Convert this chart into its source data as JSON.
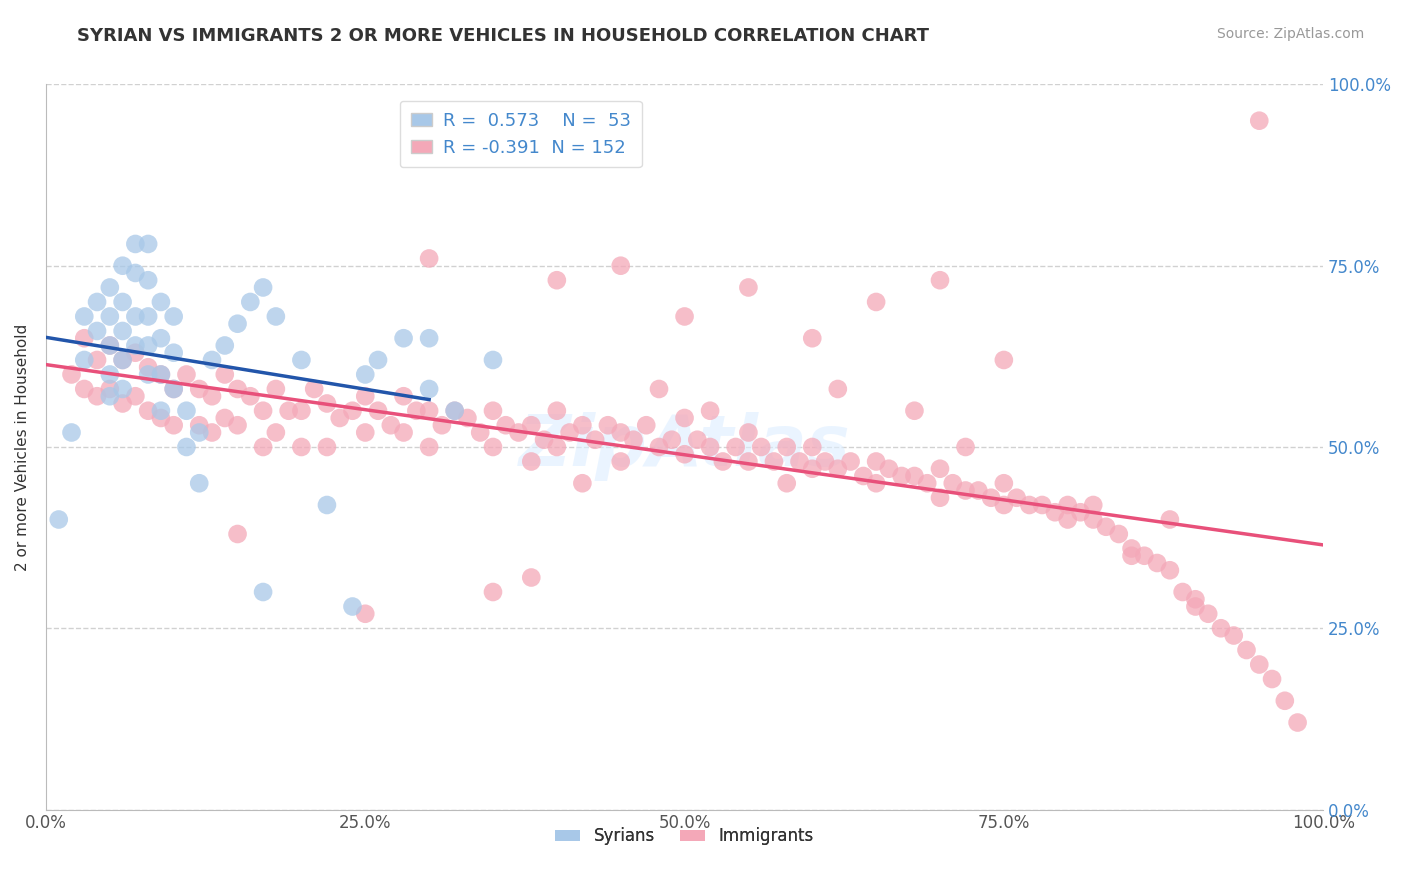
{
  "title": "SYRIAN VS IMMIGRANTS 2 OR MORE VEHICLES IN HOUSEHOLD CORRELATION CHART",
  "source": "Source: ZipAtlas.com",
  "ylabel": "2 or more Vehicles in Household",
  "background_color": "#ffffff",
  "syrian_color": "#a8c8e8",
  "immigrant_color": "#f4a8b8",
  "syrian_line_color": "#2255aa",
  "immigrant_line_color": "#e8507a",
  "syrian_R": 0.573,
  "syrian_N": 53,
  "immigrant_R": -0.391,
  "immigrant_N": 152,
  "watermark": "ZipAtlas",
  "ytick_labels": [
    "0.0%",
    "25.0%",
    "50.0%",
    "75.0%",
    "100.0%"
  ],
  "ytick_values": [
    0,
    25,
    50,
    75,
    100
  ],
  "xtick_labels": [
    "0.0%",
    "25.0%",
    "50.0%",
    "75.0%",
    "100.0%"
  ],
  "xtick_values": [
    0,
    25,
    50,
    75,
    100
  ],
  "syrians_x": [
    1,
    2,
    3,
    3,
    4,
    4,
    5,
    5,
    5,
    5,
    5,
    6,
    6,
    6,
    6,
    6,
    7,
    7,
    7,
    7,
    8,
    8,
    8,
    8,
    8,
    9,
    9,
    9,
    9,
    10,
    10,
    10,
    11,
    11,
    12,
    12,
    13,
    14,
    15,
    16,
    17,
    17,
    18,
    20,
    22,
    24,
    26,
    30,
    30,
    32,
    35,
    25,
    28
  ],
  "syrians_y": [
    40,
    52,
    68,
    62,
    70,
    66,
    72,
    68,
    64,
    60,
    57,
    75,
    70,
    66,
    62,
    58,
    78,
    74,
    68,
    64,
    78,
    73,
    68,
    64,
    60,
    70,
    65,
    60,
    55,
    68,
    63,
    58,
    55,
    50,
    45,
    52,
    62,
    64,
    67,
    70,
    72,
    30,
    68,
    62,
    42,
    28,
    62,
    58,
    65,
    55,
    62,
    60,
    65
  ],
  "immigrants_x": [
    2,
    3,
    3,
    4,
    4,
    5,
    5,
    6,
    6,
    7,
    7,
    8,
    8,
    9,
    9,
    10,
    10,
    11,
    12,
    12,
    13,
    13,
    14,
    14,
    15,
    15,
    16,
    17,
    17,
    18,
    18,
    19,
    20,
    20,
    21,
    22,
    22,
    23,
    24,
    25,
    25,
    26,
    27,
    28,
    28,
    29,
    30,
    30,
    31,
    32,
    33,
    34,
    35,
    35,
    36,
    37,
    38,
    38,
    39,
    40,
    40,
    41,
    42,
    43,
    44,
    45,
    45,
    46,
    47,
    48,
    49,
    50,
    50,
    51,
    52,
    53,
    54,
    55,
    55,
    56,
    57,
    58,
    59,
    60,
    60,
    61,
    62,
    63,
    64,
    65,
    65,
    66,
    67,
    68,
    69,
    70,
    70,
    71,
    72,
    73,
    74,
    75,
    75,
    76,
    77,
    78,
    79,
    80,
    80,
    81,
    82,
    83,
    84,
    85,
    85,
    86,
    87,
    88,
    89,
    90,
    90,
    91,
    92,
    93,
    94,
    95,
    96,
    97,
    98,
    95,
    40,
    55,
    65,
    45,
    30,
    70,
    50,
    60,
    75,
    35,
    25,
    48,
    52,
    42,
    38,
    62,
    68,
    72,
    58,
    82,
    88,
    15
  ],
  "immigrants_y": [
    60,
    65,
    58,
    62,
    57,
    64,
    58,
    62,
    56,
    63,
    57,
    61,
    55,
    60,
    54,
    58,
    53,
    60,
    58,
    53,
    57,
    52,
    60,
    54,
    58,
    53,
    57,
    55,
    50,
    58,
    52,
    55,
    55,
    50,
    58,
    56,
    50,
    54,
    55,
    57,
    52,
    55,
    53,
    57,
    52,
    55,
    55,
    50,
    53,
    55,
    54,
    52,
    55,
    50,
    53,
    52,
    53,
    48,
    51,
    55,
    50,
    52,
    53,
    51,
    53,
    52,
    48,
    51,
    53,
    50,
    51,
    54,
    49,
    51,
    50,
    48,
    50,
    52,
    48,
    50,
    48,
    50,
    48,
    50,
    47,
    48,
    47,
    48,
    46,
    48,
    45,
    47,
    46,
    46,
    45,
    47,
    43,
    45,
    44,
    44,
    43,
    45,
    42,
    43,
    42,
    42,
    41,
    42,
    40,
    41,
    40,
    39,
    38,
    36,
    35,
    35,
    34,
    33,
    30,
    29,
    28,
    27,
    25,
    24,
    22,
    20,
    18,
    15,
    12,
    95,
    73,
    72,
    70,
    75,
    76,
    73,
    68,
    65,
    62,
    30,
    27,
    58,
    55,
    45,
    32,
    58,
    55,
    50,
    45,
    42,
    40,
    38
  ]
}
